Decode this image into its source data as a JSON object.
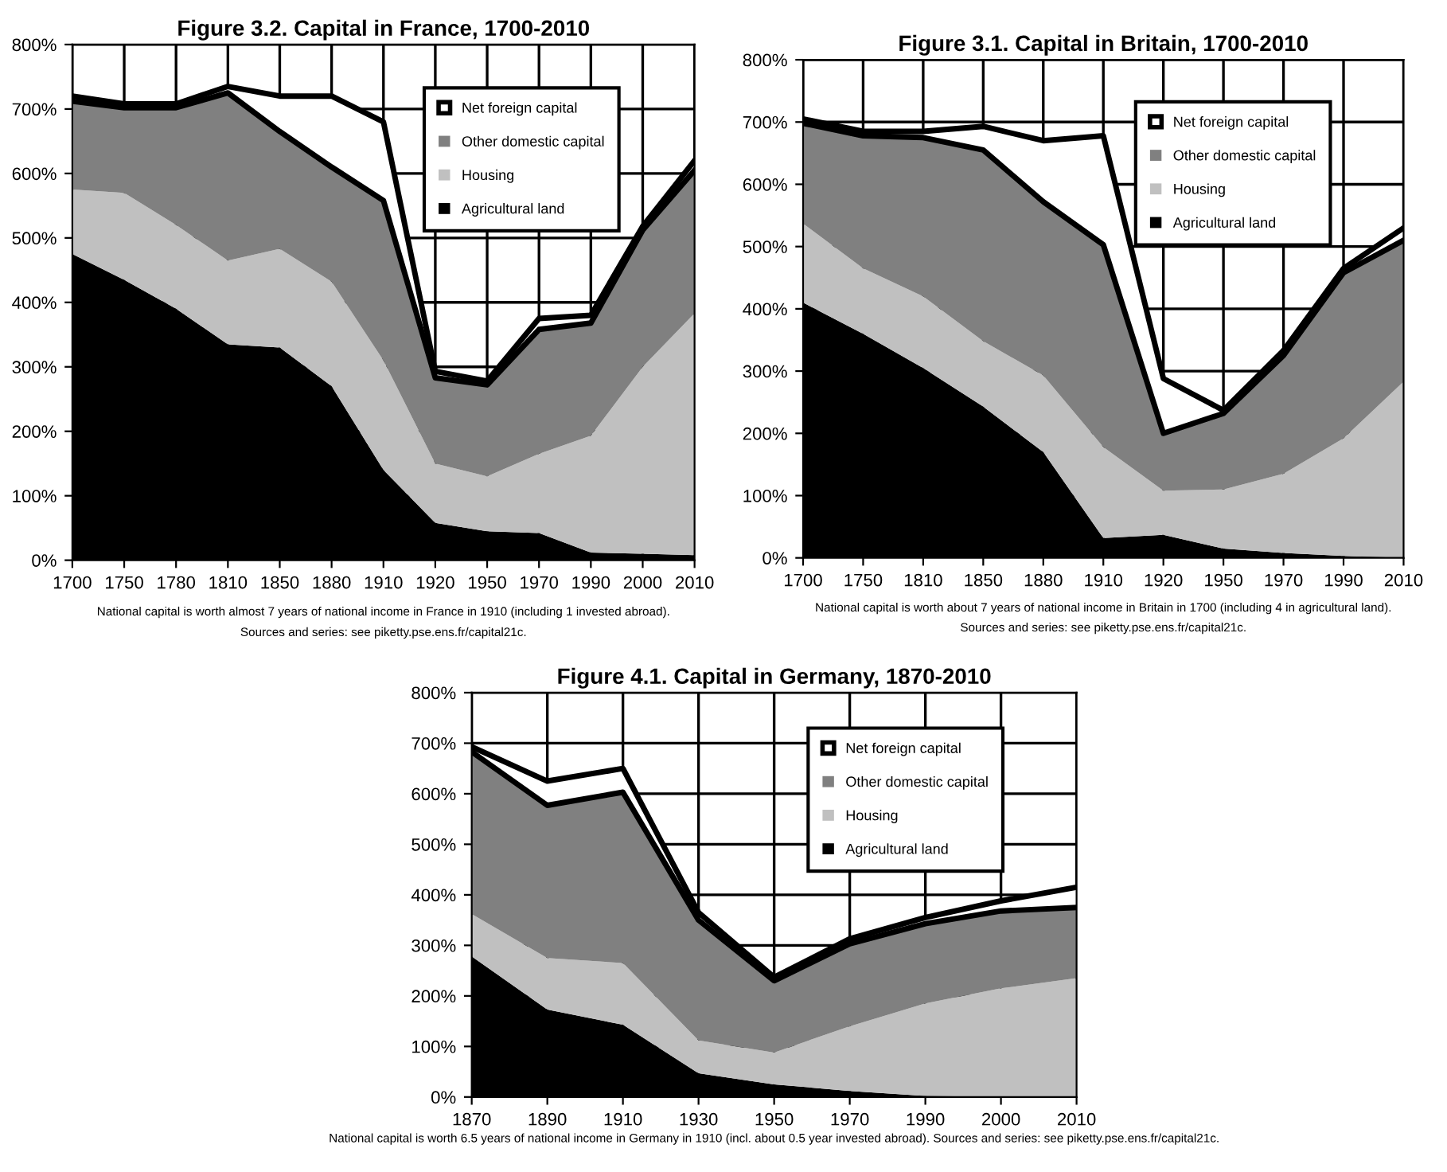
{
  "chart_data": [
    {
      "type": "area",
      "stacked": true,
      "title": "Figure 3.2. Capital in France, 1700-2010",
      "categories": [
        "1700",
        "1750",
        "1780",
        "1810",
        "1850",
        "1880",
        "1910",
        "1920",
        "1950",
        "1970",
        "1990",
        "2000",
        "2010"
      ],
      "series": [
        {
          "name": "Agricultural land",
          "color": "#000000",
          "values": [
            475,
            435,
            390,
            335,
            330,
            270,
            140,
            58,
            45,
            42,
            12,
            10,
            8
          ]
        },
        {
          "name": "Housing",
          "color": "#c0c0c0",
          "values": [
            100,
            135,
            130,
            130,
            153,
            162,
            170,
            92,
            85,
            123,
            181,
            290,
            375
          ]
        },
        {
          "name": "Other domestic capital",
          "color": "#808080",
          "values": [
            137,
            132,
            182,
            260,
            182,
            178,
            248,
            133,
            142,
            193,
            175,
            212,
            222
          ]
        },
        {
          "name": "Net foreign capital",
          "color": "#ffffff",
          "line_style": "solid",
          "values": [
            8,
            6,
            6,
            10,
            55,
            110,
            122,
            10,
            6,
            17,
            12,
            6,
            15
          ]
        }
      ],
      "ylim": [
        0,
        800
      ],
      "yticks": [
        {
          "value": 0,
          "label": "0%"
        },
        {
          "value": 100,
          "label": "100%"
        },
        {
          "value": 200,
          "label": "200%"
        },
        {
          "value": 300,
          "label": "300%"
        },
        {
          "value": 400,
          "label": "400%"
        },
        {
          "value": 500,
          "label": "500%"
        },
        {
          "value": 600,
          "label": "600%"
        },
        {
          "value": 700,
          "label": "700%"
        },
        {
          "value": 800,
          "label": "800%"
        }
      ],
      "grid": true,
      "legend": "top right",
      "annotations": [
        "National capital is worth almost 7 years of national income in France in 1910 (including 1 invested abroad).",
        "Sources and series: see piketty.pse.ens.fr/capital21c."
      ]
    },
    {
      "type": "area",
      "stacked": true,
      "title": "Figure 3.1. Capital in Britain, 1700-2010",
      "categories": [
        "1700",
        "1750",
        "1810",
        "1850",
        "1880",
        "1910",
        "1920",
        "1950",
        "1970",
        "1990",
        "2010"
      ],
      "series": [
        {
          "name": "Agricultural land",
          "color": "#000000",
          "values": [
            410,
            360,
            305,
            243,
            170,
            32,
            37,
            15,
            8,
            3,
            0
          ]
        },
        {
          "name": "Housing",
          "color": "#c0c0c0",
          "values": [
            127,
            105,
            115,
            105,
            123,
            146,
            71,
            95,
            127,
            189,
            283
          ]
        },
        {
          "name": "Other domestic capital",
          "color": "#808080",
          "values": [
            161,
            213,
            255,
            307,
            279,
            325,
            92,
            122,
            190,
            266,
            227
          ]
        },
        {
          "name": "Net foreign capital",
          "color": "#ffffff",
          "line_style": "solid",
          "values": [
            7,
            7,
            10,
            38,
            98,
            175,
            88,
            5,
            8,
            7,
            20
          ]
        }
      ],
      "ylim": [
        0,
        800
      ],
      "yticks": [
        {
          "value": 0,
          "label": "0%"
        },
        {
          "value": 100,
          "label": "100%"
        },
        {
          "value": 200,
          "label": "200%"
        },
        {
          "value": 300,
          "label": "300%"
        },
        {
          "value": 400,
          "label": "400%"
        },
        {
          "value": 500,
          "label": "500%"
        },
        {
          "value": 600,
          "label": "600%"
        },
        {
          "value": 700,
          "label": "700%"
        },
        {
          "value": 800,
          "label": "800%"
        }
      ],
      "grid": true,
      "legend": "top right",
      "annotations": [
        "National capital is worth about 7 years of national income in Britain in 1700 (including 4 in agricultural land).",
        "Sources and series: see piketty.pse.ens.fr/capital21c."
      ]
    },
    {
      "type": "area",
      "stacked": true,
      "title": "Figure 4.1. Capital in Germany, 1870-2010",
      "categories": [
        "1870",
        "1890",
        "1910",
        "1930",
        "1950",
        "1970",
        "1990",
        "2000",
        "2010"
      ],
      "series": [
        {
          "name": "Agricultural land",
          "color": "#000000",
          "values": [
            278,
            173,
            143,
            47,
            25,
            12,
            2,
            0,
            0
          ]
        },
        {
          "name": "Housing",
          "color": "#c0c0c0",
          "values": [
            84,
            102,
            122,
            65,
            63,
            128,
            183,
            215,
            235
          ]
        },
        {
          "name": "Other domestic capital",
          "color": "#808080",
          "values": [
            321,
            302,
            338,
            238,
            142,
            163,
            158,
            153,
            140
          ]
        },
        {
          "name": "Net foreign capital",
          "color": "#ffffff",
          "line_style": "solid",
          "values": [
            10,
            48,
            47,
            15,
            7,
            10,
            12,
            20,
            40
          ]
        }
      ],
      "ylim": [
        0,
        800
      ],
      "yticks": [
        {
          "value": 0,
          "label": "0%"
        },
        {
          "value": 100,
          "label": "100%"
        },
        {
          "value": 200,
          "label": "200%"
        },
        {
          "value": 300,
          "label": "300%"
        },
        {
          "value": 400,
          "label": "400%"
        },
        {
          "value": 500,
          "label": "500%"
        },
        {
          "value": 600,
          "label": "600%"
        },
        {
          "value": 700,
          "label": "700%"
        },
        {
          "value": 800,
          "label": "800%"
        }
      ],
      "grid": true,
      "legend": "top right",
      "annotations": [
        "National capital is worth 6.5 years of national income in Germany in 1910 (incl. about 0.5 year invested abroad). Sources and series: see piketty.pse.ens.fr/capital21c."
      ]
    }
  ]
}
